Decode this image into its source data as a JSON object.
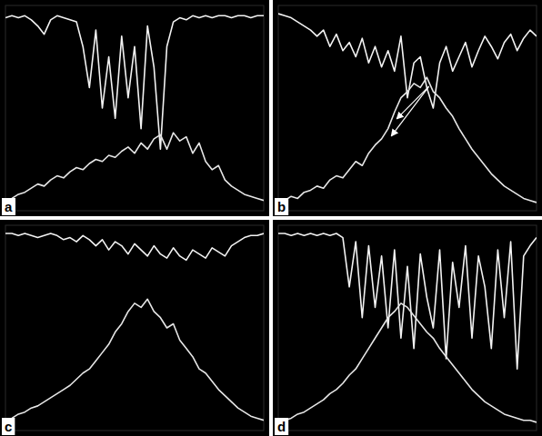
{
  "chart_data": [
    {
      "type": "line",
      "title": "a",
      "tick_labels": false,
      "grid": false,
      "x": [
        0,
        2.5,
        5,
        7.5,
        10,
        12.5,
        15,
        17.5,
        20,
        22.5,
        25,
        27.5,
        30,
        32.5,
        35,
        37.5,
        40,
        42.5,
        45,
        47.5,
        50,
        52.5,
        55,
        57.5,
        60,
        62.5,
        65,
        67.5,
        70,
        72.5,
        75,
        77.5,
        80,
        82.5,
        85,
        87.5,
        90,
        92.5,
        95,
        97.5,
        100
      ],
      "xlim": [
        0,
        100
      ],
      "ylim": [
        0,
        100
      ],
      "series": [
        {
          "color": "#f2f2f2",
          "values": [
            94,
            95,
            94,
            95,
            93,
            90,
            86,
            93,
            95,
            94,
            93,
            92,
            80,
            60,
            88,
            50,
            75,
            45,
            85,
            55,
            80,
            40,
            90,
            70,
            30,
            80,
            92,
            94,
            93,
            95,
            94,
            95,
            94,
            95,
            95,
            94,
            95,
            95,
            94,
            95,
            95
          ]
        },
        {
          "color": "#e6e6e6",
          "values": [
            5,
            6,
            8,
            9,
            11,
            13,
            12,
            15,
            17,
            16,
            19,
            21,
            20,
            23,
            25,
            24,
            27,
            26,
            29,
            31,
            28,
            33,
            30,
            35,
            37,
            30,
            38,
            34,
            36,
            28,
            33,
            24,
            20,
            22,
            15,
            12,
            10,
            8,
            7,
            6,
            5
          ]
        }
      ]
    },
    {
      "type": "line",
      "title": "b",
      "tick_labels": false,
      "grid": false,
      "x": [
        0,
        2.5,
        5,
        7.5,
        10,
        12.5,
        15,
        17.5,
        20,
        22.5,
        25,
        27.5,
        30,
        32.5,
        35,
        37.5,
        40,
        42.5,
        45,
        47.5,
        50,
        52.5,
        55,
        57.5,
        60,
        62.5,
        65,
        67.5,
        70,
        72.5,
        75,
        77.5,
        80,
        82.5,
        85,
        87.5,
        90,
        92.5,
        95,
        97.5,
        100
      ],
      "xlim": [
        0,
        100
      ],
      "ylim": [
        0,
        100
      ],
      "series": [
        {
          "color": "#f2f2f2",
          "values": [
            96,
            95,
            94,
            92,
            90,
            88,
            85,
            88,
            80,
            86,
            78,
            82,
            75,
            84,
            72,
            80,
            70,
            78,
            68,
            85,
            55,
            72,
            75,
            60,
            50,
            72,
            80,
            68,
            75,
            82,
            70,
            78,
            85,
            80,
            74,
            82,
            86,
            78,
            84,
            88,
            85
          ]
        },
        {
          "color": "#e6e6e6",
          "values": [
            4,
            5,
            7,
            6,
            9,
            10,
            12,
            11,
            15,
            17,
            16,
            20,
            24,
            22,
            28,
            32,
            35,
            40,
            48,
            55,
            58,
            62,
            60,
            65,
            58,
            55,
            50,
            46,
            40,
            35,
            30,
            26,
            22,
            18,
            15,
            12,
            10,
            8,
            6,
            5,
            4
          ]
        }
      ]
    },
    {
      "type": "line",
      "title": "c",
      "tick_labels": false,
      "grid": false,
      "x": [
        0,
        2.5,
        5,
        7.5,
        10,
        12.5,
        15,
        17.5,
        20,
        22.5,
        25,
        27.5,
        30,
        32.5,
        35,
        37.5,
        40,
        42.5,
        45,
        47.5,
        50,
        52.5,
        55,
        57.5,
        60,
        62.5,
        65,
        67.5,
        70,
        72.5,
        75,
        77.5,
        80,
        82.5,
        85,
        87.5,
        90,
        92.5,
        95,
        97.5,
        100
      ],
      "xlim": [
        0,
        100
      ],
      "ylim": [
        0,
        100
      ],
      "series": [
        {
          "color": "#f2f2f2",
          "values": [
            96,
            96,
            95,
            96,
            95,
            94,
            95,
            96,
            95,
            93,
            94,
            92,
            95,
            93,
            90,
            93,
            88,
            92,
            90,
            86,
            91,
            88,
            85,
            90,
            86,
            84,
            89,
            85,
            83,
            88,
            86,
            84,
            89,
            87,
            85,
            90,
            92,
            94,
            95,
            95,
            96
          ]
        },
        {
          "color": "#e6e6e6",
          "values": [
            5,
            6,
            8,
            9,
            11,
            12,
            14,
            16,
            18,
            20,
            22,
            25,
            28,
            30,
            34,
            38,
            42,
            48,
            52,
            58,
            62,
            60,
            64,
            58,
            55,
            50,
            52,
            44,
            40,
            36,
            30,
            28,
            24,
            20,
            17,
            14,
            11,
            9,
            7,
            6,
            5
          ]
        }
      ]
    },
    {
      "type": "line",
      "title": "d",
      "tick_labels": false,
      "grid": false,
      "x": [
        0,
        2.5,
        5,
        7.5,
        10,
        12.5,
        15,
        17.5,
        20,
        22.5,
        25,
        27.5,
        30,
        32.5,
        35,
        37.5,
        40,
        42.5,
        45,
        47.5,
        50,
        52.5,
        55,
        57.5,
        60,
        62.5,
        65,
        67.5,
        70,
        72.5,
        75,
        77.5,
        80,
        82.5,
        85,
        87.5,
        90,
        92.5,
        95,
        97.5,
        100
      ],
      "xlim": [
        0,
        100
      ],
      "ylim": [
        0,
        100
      ],
      "series": [
        {
          "color": "#f2f2f2",
          "values": [
            96,
            96,
            95,
            96,
            95,
            96,
            95,
            96,
            95,
            96,
            94,
            70,
            92,
            55,
            90,
            60,
            85,
            50,
            88,
            45,
            80,
            40,
            86,
            65,
            50,
            88,
            35,
            82,
            60,
            90,
            45,
            85,
            70,
            40,
            88,
            55,
            92,
            30,
            85,
            90,
            94
          ]
        },
        {
          "color": "#e6e6e6",
          "values": [
            4,
            5,
            6,
            8,
            9,
            11,
            13,
            15,
            18,
            20,
            23,
            27,
            30,
            35,
            40,
            45,
            50,
            55,
            58,
            62,
            60,
            56,
            52,
            48,
            45,
            40,
            36,
            32,
            28,
            24,
            20,
            17,
            14,
            12,
            10,
            8,
            7,
            6,
            5,
            5,
            4
          ]
        }
      ]
    }
  ]
}
